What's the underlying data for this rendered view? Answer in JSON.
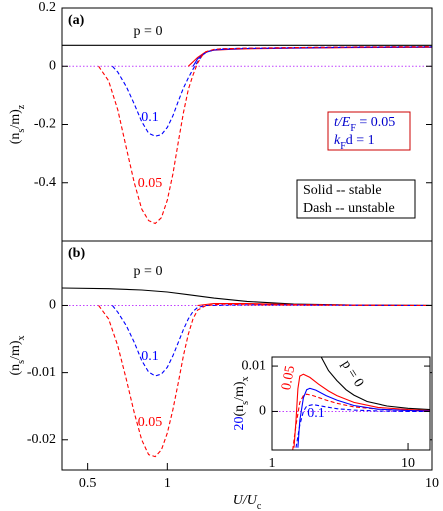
{
  "chart_data": [
    {
      "type": "line",
      "panel_label": "(a)",
      "log_x": true,
      "zero_line": true,
      "xlim": [
        0.4,
        10
      ],
      "ylim": [
        -0.6,
        0.2
      ],
      "yticks": [
        0.2,
        0,
        -0.2,
        -0.4
      ],
      "ylabel": [
        {
          "text": "(n"
        },
        {
          "text": "s",
          "sub": true
        },
        {
          "text": "/m)"
        },
        {
          "text": "z",
          "sub": true
        }
      ],
      "series": [
        {
          "name": "p = 0",
          "color": "#000000",
          "dash": false,
          "x": [
            0.4,
            10
          ],
          "values": [
            0.072,
            0.072
          ]
        },
        {
          "color": "#ff0000",
          "dash": false,
          "x": [
            1.2,
            1.3,
            1.4,
            1.5,
            1.7,
            2,
            3,
            5,
            10
          ],
          "values": [
            0,
            0.03,
            0.05,
            0.055,
            0.058,
            0.06,
            0.062,
            0.064,
            0.065
          ]
        },
        {
          "color": "#0000ff",
          "dash": false,
          "x": [
            1.25,
            1.3,
            1.4,
            1.5,
            1.7,
            2,
            3,
            5,
            10
          ],
          "values": [
            0,
            0.025,
            0.048,
            0.056,
            0.059,
            0.061,
            0.063,
            0.065,
            0.066
          ]
        },
        {
          "name": "0.1",
          "color": "#0000ff",
          "dash": true,
          "x": [
            0.62,
            0.65,
            0.7,
            0.75,
            0.8,
            0.85,
            0.9,
            0.95,
            1.0,
            1.05,
            1.1,
            1.15,
            1.2,
            1.25,
            1.3,
            1.35,
            1.4,
            1.5,
            1.6,
            2,
            3,
            5,
            10
          ],
          "values": [
            0,
            -0.02,
            -0.07,
            -0.13,
            -0.19,
            -0.23,
            -0.24,
            -0.235,
            -0.21,
            -0.17,
            -0.12,
            -0.075,
            -0.04,
            -0.01,
            0.015,
            0.035,
            0.048,
            0.056,
            0.06,
            0.062,
            0.064,
            0.066,
            0.067
          ]
        },
        {
          "name": "0.05",
          "color": "#ff0000",
          "dash": true,
          "x": [
            0.55,
            0.6,
            0.65,
            0.7,
            0.75,
            0.8,
            0.85,
            0.9,
            0.95,
            1.0,
            1.05,
            1.1,
            1.15,
            1.2,
            1.25,
            1.3,
            1.35,
            1.4,
            1.5,
            1.6,
            2,
            3,
            5,
            10
          ],
          "values": [
            0,
            -0.05,
            -0.15,
            -0.28,
            -0.4,
            -0.49,
            -0.53,
            -0.54,
            -0.52,
            -0.46,
            -0.37,
            -0.26,
            -0.16,
            -0.08,
            -0.03,
            0.01,
            0.035,
            0.05,
            0.058,
            0.06,
            0.062,
            0.064,
            0.066,
            0.067
          ]
        }
      ],
      "boxes": [
        {
          "border": "#cc0000",
          "text_color": "#0000cc",
          "lines": [
            [
              {
                "text": "t/E"
              },
              {
                "text": "F",
                "sub": true
              },
              {
                "text": " = 0.05"
              }
            ],
            [
              {
                "text": "k"
              },
              {
                "text": "F",
                "sub": true
              },
              {
                "text": "d = 1"
              }
            ]
          ]
        },
        {
          "border": "#000000",
          "text_color": "#000000",
          "lines": [
            [
              {
                "text": "Solid -- stable"
              }
            ],
            [
              {
                "text": "Dash -- unstable"
              }
            ]
          ]
        }
      ]
    },
    {
      "type": "line",
      "panel_label": "(b)",
      "log_x": true,
      "zero_line": true,
      "xlim": [
        0.4,
        10
      ],
      "xticks": [
        0.5,
        1,
        10
      ],
      "ylim": [
        -0.0245,
        0.0096
      ],
      "yticks": [
        0,
        -0.01,
        -0.02
      ],
      "xlabel": [
        {
          "text": "U/U"
        },
        {
          "text": "c",
          "sub": true
        }
      ],
      "ylabel": [
        {
          "text": "(n"
        },
        {
          "text": "s",
          "sub": true
        },
        {
          "text": "/m)"
        },
        {
          "text": "x",
          "sub": true
        }
      ],
      "series": [
        {
          "name": "p = 0",
          "color": "#000000",
          "dash": false,
          "x": [
            0.4,
            0.6,
            0.8,
            1,
            1.2,
            1.5,
            2,
            3,
            5,
            10
          ],
          "values": [
            0.0026,
            0.0025,
            0.0023,
            0.002,
            0.0016,
            0.0011,
            0.0006,
            0.0002,
            5e-05,
            1e-05
          ]
        },
        {
          "color": "#ff0000",
          "dash": false,
          "x": [
            1.3,
            1.5,
            2,
            3,
            5,
            10
          ],
          "values": [
            0,
            0.0003,
            0.0003,
            0.00015,
            5e-05,
            0
          ]
        },
        {
          "name": "0.1",
          "color": "#0000ff",
          "dash": true,
          "x": [
            0.62,
            0.65,
            0.7,
            0.75,
            0.8,
            0.85,
            0.9,
            0.95,
            1,
            1.05,
            1.1,
            1.15,
            1.2,
            1.25,
            1.3,
            1.4,
            2,
            10
          ],
          "values": [
            0,
            -0.001,
            -0.003,
            -0.0055,
            -0.0082,
            -0.0099,
            -0.0105,
            -0.0102,
            -0.0092,
            -0.0075,
            -0.0055,
            -0.0036,
            -0.002,
            -0.0009,
            -0.0003,
            0,
            0.0001,
            0
          ]
        },
        {
          "name": "0.05",
          "color": "#ff0000",
          "dash": true,
          "x": [
            0.55,
            0.6,
            0.65,
            0.7,
            0.75,
            0.8,
            0.85,
            0.9,
            0.95,
            1,
            1.05,
            1.1,
            1.15,
            1.2,
            1.25,
            1.3,
            1.4,
            1.6,
            2,
            3,
            10
          ],
          "values": [
            0,
            -0.002,
            -0.006,
            -0.011,
            -0.016,
            -0.02,
            -0.0222,
            -0.0225,
            -0.0215,
            -0.019,
            -0.0155,
            -0.0115,
            -0.0075,
            -0.0043,
            -0.002,
            -0.0007,
            0,
            0.0002,
            0.0001,
            5e-05,
            0
          ]
        }
      ]
    },
    {
      "type": "line",
      "log_x": true,
      "zero_line": true,
      "xlim": [
        1,
        14.5
      ],
      "xticks": [
        1,
        10
      ],
      "ylim": [
        -0.0085,
        0.012
      ],
      "yticks": [
        0,
        0.01
      ],
      "ylabel": [
        {
          "text": "20",
          "color": "#0000ff"
        },
        {
          "text": "(n"
        },
        {
          "text": "s",
          "sub": true
        },
        {
          "text": "/m)"
        },
        {
          "text": "x",
          "sub": true
        }
      ],
      "series": [
        {
          "name": "p = 0",
          "color": "#000000",
          "dash": false,
          "x": [
            1.8,
            2.3,
            2.6,
            3,
            3.5,
            4,
            5,
            7,
            10,
            14.5
          ],
          "values": [
            0.014,
            0.012,
            0.009,
            0.0068,
            0.0048,
            0.0036,
            0.0022,
            0.0012,
            0.0007,
            0.0004
          ]
        },
        {
          "name": "0.05",
          "color": "#ff0000",
          "dash": false,
          "x": [
            1.45,
            1.5,
            1.55,
            1.6,
            1.7,
            1.9,
            2.2,
            2.6,
            3,
            4,
            6,
            10,
            14.5
          ],
          "values": [
            -0.008,
            -0.002,
            0.005,
            0.0078,
            0.0082,
            0.0075,
            0.006,
            0.0045,
            0.0035,
            0.002,
            0.0009,
            0.0004,
            0.0002
          ]
        },
        {
          "color": "#ff0000",
          "dash": true,
          "x": [
            1.42,
            1.5,
            1.6,
            1.7,
            1.8,
            2,
            2.5,
            3,
            4,
            6,
            10,
            14.5
          ],
          "values": [
            -0.0085,
            -0.003,
            0.002,
            0.0035,
            0.0038,
            0.0035,
            0.0025,
            0.0018,
            0.001,
            0.0005,
            0.0002,
            0.0001
          ]
        },
        {
          "name": "0.1",
          "color": "#0000ff",
          "dash": false,
          "x": [
            1.55,
            1.6,
            1.7,
            1.8,
            1.9,
            2.1,
            2.5,
            3,
            4,
            6,
            10,
            14.5
          ],
          "values": [
            -0.008,
            -0.002,
            0.003,
            0.0048,
            0.0051,
            0.0047,
            0.0035,
            0.0025,
            0.0013,
            0.0005,
            0.0002,
            0.0001
          ]
        },
        {
          "color": "#0000ff",
          "dash": true,
          "x": [
            1.5,
            1.6,
            1.7,
            1.8,
            2,
            2.5,
            3,
            4,
            6,
            10,
            14.5
          ],
          "values": [
            -0.008,
            -0.003,
            0,
            0.0012,
            0.0015,
            0.001,
            0.0006,
            0.0003,
            0.0001,
            0,
            0
          ]
        }
      ]
    }
  ]
}
